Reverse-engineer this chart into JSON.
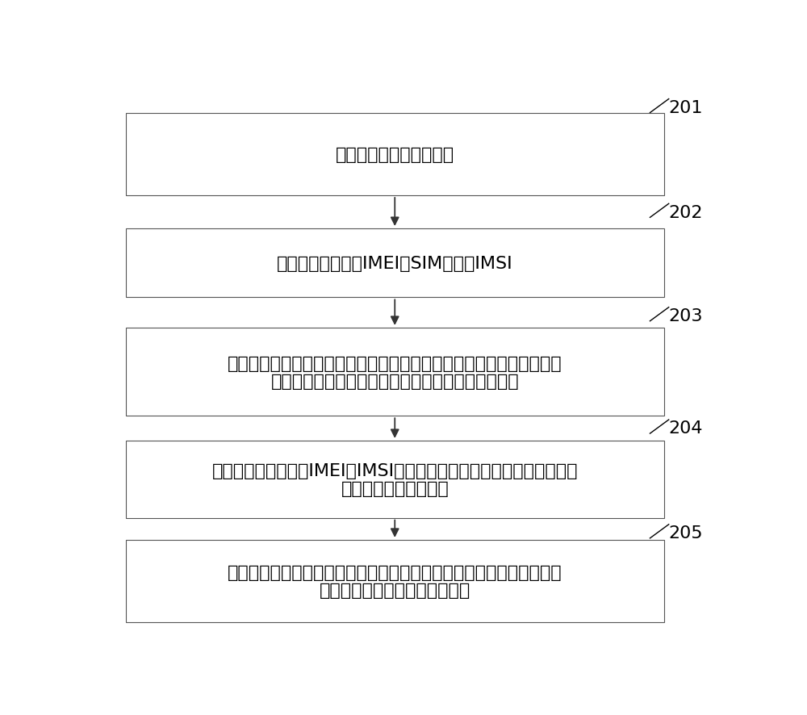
{
  "background_color": "#ffffff",
  "fig_width": 10.0,
  "fig_height": 8.87,
  "dpi": 100,
  "boxes": [
    {
      "id": 1,
      "step_num": "201",
      "lines": [
        "终端以基本能力接入网络"
      ],
      "num_lines": 1
    },
    {
      "id": 2,
      "step_num": "202",
      "lines": [
        "基站获取终端标识IMEI及SIM卡标识IMSI"
      ],
      "num_lines": 1
    },
    {
      "id": 3,
      "step_num": "203",
      "lines": [
        "基站选取到至少一个目标能力，并基于上述标识信息以及至少一个目标",
        "能力生成查询信息，发送查询信息至网络侧的数据库"
      ],
      "num_lines": 2
    },
    {
      "id": 4,
      "step_num": "204",
      "lines": [
        "网络侧的数据库根据IMEI和IMSI反馈反馈的所述终端设备的至少一种目",
        "标能力的支持情况信息"
      ],
      "num_lines": 2
    },
    {
      "id": 5,
      "step_num": "205",
      "lines": [
        "基站根据获得的支持情况信息中包含的其所关心的终端目标能力来对终",
        "端设备进行其能力范围内的操作"
      ],
      "num_lines": 2
    }
  ],
  "box_edge_color": "#555555",
  "box_face_color": "#ffffff",
  "text_color": "#000000",
  "arrow_color": "#333333",
  "step_num_color": "#000000",
  "step_num_fontsize": 16,
  "text_fontsize": 16,
  "line_width": 0.8
}
